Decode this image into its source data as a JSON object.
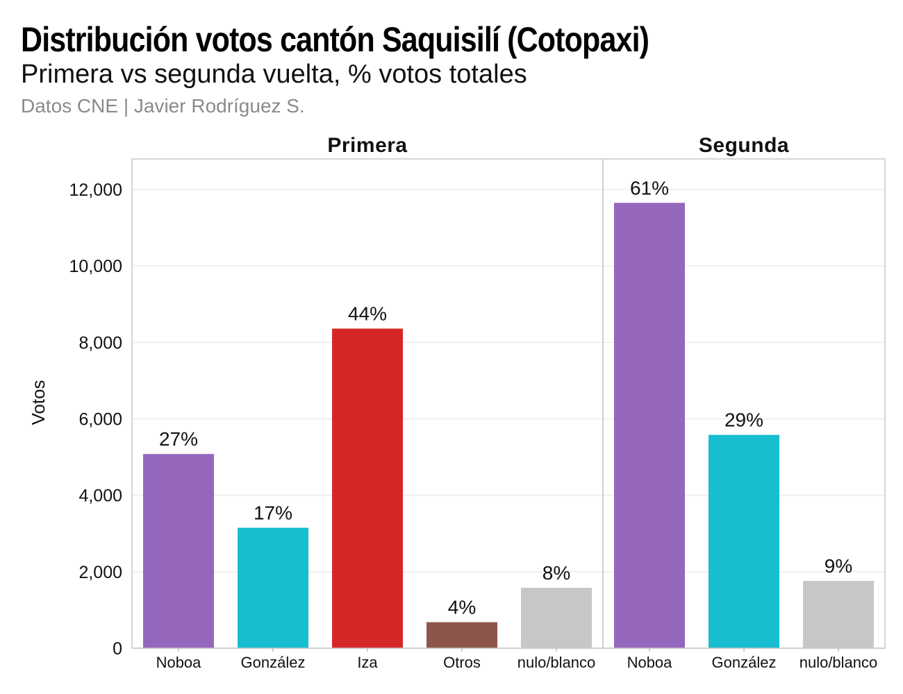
{
  "title": "Distribución votos cantón Saquisilí (Cotopaxi)",
  "subtitle": "Primera vs segunda vuelta, % votos totales",
  "caption": "Datos CNE | Javier Rodríguez S.",
  "chart_data": {
    "type": "bar",
    "ylabel": "Votos",
    "ylim": [
      0,
      12800
    ],
    "yticks": [
      0,
      2000,
      4000,
      6000,
      8000,
      10000,
      12000
    ],
    "ytick_labels": [
      "0",
      "2,000",
      "4,000",
      "6,000",
      "8,000",
      "10,000",
      "12,000"
    ],
    "grid": true,
    "panels": [
      {
        "name": "Primera",
        "bars": [
          {
            "category": "Noboa",
            "value": 5080,
            "label": "27%",
            "color": "#9467bd"
          },
          {
            "category": "González",
            "value": 3150,
            "label": "17%",
            "color": "#17becf"
          },
          {
            "category": "Iza",
            "value": 8360,
            "label": "44%",
            "color": "#d62728"
          },
          {
            "category": "Otros",
            "value": 680,
            "label": "4%",
            "color": "#8c564b"
          },
          {
            "category": "nulo/blanco",
            "value": 1580,
            "label": "8%",
            "color": "#c7c7c7"
          }
        ]
      },
      {
        "name": "Segunda",
        "bars": [
          {
            "category": "Noboa",
            "value": 11650,
            "label": "61%",
            "color": "#9467bd"
          },
          {
            "category": "González",
            "value": 5580,
            "label": "29%",
            "color": "#17becf"
          },
          {
            "category": "nulo/blanco",
            "value": 1760,
            "label": "9%",
            "color": "#c7c7c7"
          }
        ]
      }
    ]
  }
}
